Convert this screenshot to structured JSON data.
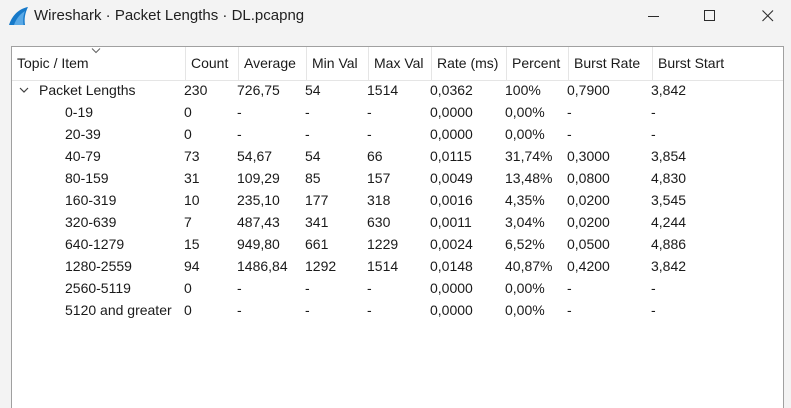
{
  "window": {
    "title": "Wireshark · Packet Lengths · DL.pcapng",
    "controls": [
      "minimize-icon",
      "maximize-icon",
      "close-icon"
    ],
    "icon": "wireshark-fin-icon",
    "accent": "#1679c9"
  },
  "table": {
    "columns": [
      "Topic / Item",
      "Count",
      "Average",
      "Min Val",
      "Max Val",
      "Rate (ms)",
      "Percent",
      "Burst Rate",
      "Burst Start"
    ],
    "sorted_column": "Topic / Item",
    "root": {
      "expanded": true,
      "cells": [
        "Packet Lengths",
        "230",
        "726,75",
        "54",
        "1514",
        "0,0362",
        "100%",
        "0,7900",
        "3,842"
      ]
    },
    "rows": [
      [
        "0-19",
        "0",
        "-",
        "-",
        "-",
        "0,0000",
        "0,00%",
        "-",
        "-"
      ],
      [
        "20-39",
        "0",
        "-",
        "-",
        "-",
        "0,0000",
        "0,00%",
        "-",
        "-"
      ],
      [
        "40-79",
        "73",
        "54,67",
        "54",
        "66",
        "0,0115",
        "31,74%",
        "0,3000",
        "3,854"
      ],
      [
        "80-159",
        "31",
        "109,29",
        "85",
        "157",
        "0,0049",
        "13,48%",
        "0,0800",
        "4,830"
      ],
      [
        "160-319",
        "10",
        "235,10",
        "177",
        "318",
        "0,0016",
        "4,35%",
        "0,0200",
        "3,545"
      ],
      [
        "320-639",
        "7",
        "487,43",
        "341",
        "630",
        "0,0011",
        "3,04%",
        "0,0200",
        "4,244"
      ],
      [
        "640-1279",
        "15",
        "949,80",
        "661",
        "1229",
        "0,0024",
        "6,52%",
        "0,0500",
        "4,886"
      ],
      [
        "1280-2559",
        "94",
        "1486,84",
        "1292",
        "1514",
        "0,0148",
        "40,87%",
        "0,4200",
        "3,842"
      ],
      [
        "2560-5119",
        "0",
        "-",
        "-",
        "-",
        "0,0000",
        "0,00%",
        "-",
        "-"
      ],
      [
        "5120 and greater",
        "0",
        "-",
        "-",
        "-",
        "0,0000",
        "0,00%",
        "-",
        "-"
      ]
    ]
  }
}
